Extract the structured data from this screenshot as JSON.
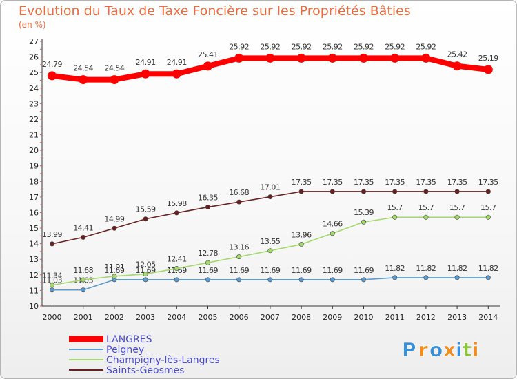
{
  "chart_data": {
    "type": "line",
    "title": "Evolution du Taux de Taxe Foncière sur les Propriétés Bâties",
    "subtitle": "(en %)",
    "xlabel": "",
    "ylabel": "",
    "x": [
      "2000",
      "2001",
      "2002",
      "2003",
      "2004",
      "2005",
      "2006",
      "2007",
      "2008",
      "2009",
      "2010",
      "2011",
      "2012",
      "2013",
      "2014"
    ],
    "yticks": [
      "10",
      "11",
      "12",
      "13",
      "14",
      "15",
      "16",
      "17",
      "18",
      "19",
      "20",
      "21",
      "22",
      "23",
      "24",
      "25",
      "26",
      "27"
    ],
    "ylim": [
      10,
      27
    ],
    "grid": false,
    "legend_position": "bottom-left",
    "series": [
      {
        "name": "LANGRES",
        "color": "#ff0000",
        "values": [
          24.79,
          24.54,
          24.54,
          24.91,
          24.91,
          25.41,
          25.92,
          25.92,
          25.92,
          25.92,
          25.92,
          25.92,
          25.92,
          25.42,
          25.19
        ],
        "labels": [
          "24.79",
          "24.54",
          "24.54",
          "24.91",
          "24.91",
          "25.41",
          "25.92",
          "25.92",
          "25.92",
          "25.92",
          "25.92",
          "25.92",
          "25.92",
          "25.42",
          "25.19"
        ]
      },
      {
        "name": "Peigney",
        "color": "#5b9bd0",
        "values": [
          11.03,
          11.03,
          11.69,
          11.69,
          11.69,
          11.69,
          11.69,
          11.69,
          11.69,
          11.69,
          11.69,
          11.82,
          11.82,
          11.82,
          11.82
        ],
        "labels": [
          "11.03",
          "11.03",
          "11.69",
          "11.69",
          "11.69",
          "11.69",
          "11.69",
          "11.69",
          "11.69",
          "11.69",
          "11.69",
          "11.82",
          "11.82",
          "11.82",
          "11.82"
        ]
      },
      {
        "name": "Champigny-lès-Langres",
        "color": "#a4d96c",
        "values": [
          11.34,
          11.68,
          11.91,
          12.05,
          12.41,
          12.78,
          13.16,
          13.55,
          13.96,
          14.66,
          15.39,
          15.7,
          15.7,
          15.7,
          15.7
        ],
        "labels": [
          "11.34",
          "11.68",
          "11.91",
          "12.05",
          "12.41",
          "12.78",
          "13.16",
          "13.55",
          "13.96",
          "14.66",
          "15.39",
          "15.7",
          "15.7",
          "15.7",
          "15.7"
        ]
      },
      {
        "name": "Saints-Geosmes",
        "color": "#6a2020",
        "values": [
          13.99,
          14.41,
          14.99,
          15.59,
          15.98,
          16.35,
          16.68,
          17.01,
          17.35,
          17.35,
          17.35,
          17.35,
          17.35,
          17.35,
          17.35
        ],
        "labels": [
          "13.99",
          "14.41",
          "14.99",
          "15.59",
          "15.98",
          "16.35",
          "16.68",
          "17.01",
          "17.35",
          "17.35",
          "17.35",
          "17.35",
          "17.35",
          "17.35",
          "17.35"
        ]
      }
    ]
  },
  "logo": {
    "text": "Proxiti",
    "letters": [
      "P",
      "r",
      "o",
      "x",
      "i",
      "t",
      "i"
    ],
    "colors": [
      "#3a8fd9",
      "#f28c1e",
      "#3a8fd9",
      "#f28c1e",
      "#3a8fd9",
      "#8cc63f",
      "#f28c1e"
    ]
  }
}
